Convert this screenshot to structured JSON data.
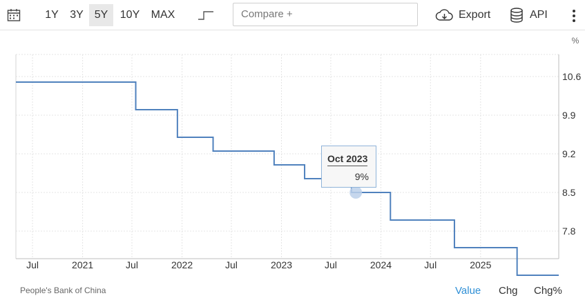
{
  "toolbar": {
    "ranges": [
      "1Y",
      "3Y",
      "5Y",
      "10Y",
      "MAX"
    ],
    "active_range": "5Y",
    "compare_placeholder": "Compare +",
    "export_label": "Export",
    "api_label": "API"
  },
  "footer": {
    "source": "People's Bank of China",
    "tabs": [
      "Value",
      "Chg",
      "Chg%"
    ],
    "active_tab": "Value"
  },
  "tooltip": {
    "date": "Oct 2023",
    "value": "9%"
  },
  "chart_data": {
    "type": "line",
    "step": true,
    "unit_label": "%",
    "ylim": [
      7.3,
      11.0
    ],
    "yticks": [
      10.6,
      9.9,
      9.2,
      8.5,
      7.8
    ],
    "ytick_labels": [
      "10.6",
      "9.9",
      "9.2",
      "8.5",
      "7.8"
    ],
    "xlim": [
      "2020-05-01",
      "2025-10-15"
    ],
    "xticks": [
      {
        "date": "2020-07-01",
        "label": "Jul"
      },
      {
        "date": "2021-01-01",
        "label": "2021"
      },
      {
        "date": "2021-07-01",
        "label": "Jul"
      },
      {
        "date": "2022-01-01",
        "label": "2022"
      },
      {
        "date": "2022-07-01",
        "label": "Jul"
      },
      {
        "date": "2023-01-01",
        "label": "2023"
      },
      {
        "date": "2023-07-01",
        "label": "Jul"
      },
      {
        "date": "2024-01-01",
        "label": "2024"
      },
      {
        "date": "2024-07-01",
        "label": "Jul"
      },
      {
        "date": "2025-01-01",
        "label": "2025"
      }
    ],
    "series": [
      {
        "points": [
          {
            "x": "2020-05-01",
            "y": 10.5
          },
          {
            "x": "2021-07-15",
            "y": 10.0
          },
          {
            "x": "2021-12-15",
            "y": 9.5
          },
          {
            "x": "2022-04-25",
            "y": 9.25
          },
          {
            "x": "2022-12-05",
            "y": 9.0
          },
          {
            "x": "2023-03-27",
            "y": 8.75
          },
          {
            "x": "2023-09-15",
            "y": 8.5
          },
          {
            "x": "2024-02-05",
            "y": 8.0
          },
          {
            "x": "2024-09-27",
            "y": 7.5
          },
          {
            "x": "2025-05-15",
            "y": 7.0
          }
        ]
      }
    ],
    "highlight": {
      "x": "2023-10-01",
      "y": 8.5
    },
    "grid": true
  }
}
